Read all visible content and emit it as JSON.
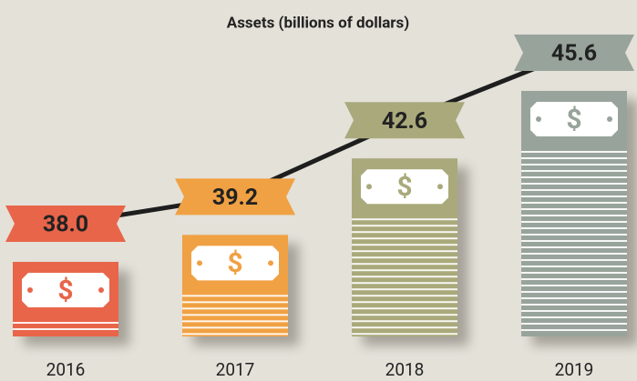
{
  "chart_data": {
    "type": "money-stack",
    "title": "Assets (billions of dollars)",
    "categories": [
      "2016",
      "2017",
      "2018",
      "2019"
    ],
    "values": [
      38.0,
      39.2,
      42.6,
      45.6
    ],
    "value_labels": [
      "38.0",
      "39.2",
      "42.6",
      "45.6"
    ],
    "colors": [
      "#e8654a",
      "#f0a143",
      "#a9a97b",
      "#98a49b"
    ]
  }
}
